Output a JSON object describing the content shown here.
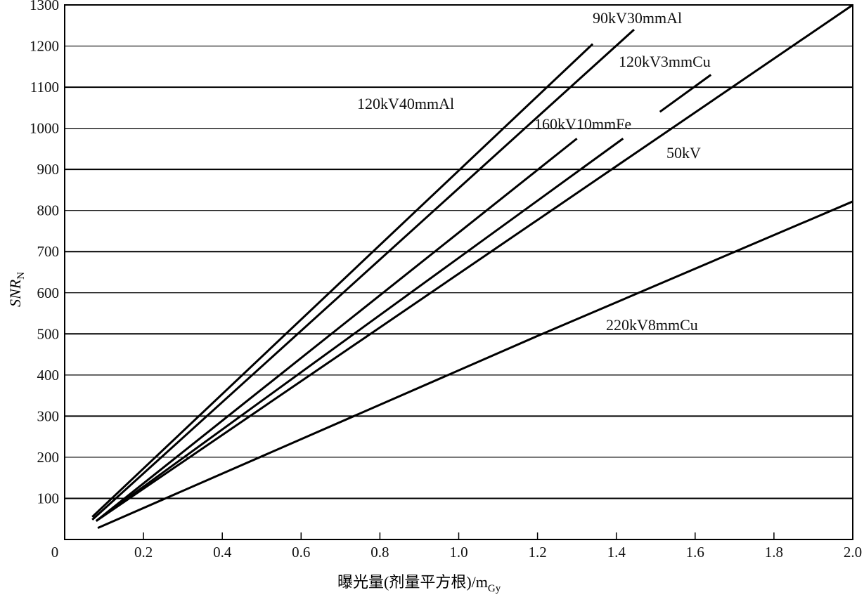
{
  "chart_data": {
    "type": "line",
    "title": "",
    "xlabel": "曝光量(剂量平方根)/m",
    "xlabel_sub": "Gy",
    "ylabel": "SNR",
    "ylabel_sub": "N",
    "xlim": [
      0,
      2.0
    ],
    "ylim": [
      0,
      1300
    ],
    "xticks": [
      "0",
      "0.2",
      "0.4",
      "0.6",
      "0.8",
      "1.0",
      "1.2",
      "1.4",
      "1.6",
      "1.8",
      "2.0"
    ],
    "yticks": [
      "100",
      "200",
      "300",
      "400",
      "500",
      "600",
      "700",
      "800",
      "900",
      "1000",
      "1100",
      "1200",
      "1300"
    ],
    "grid": "horizontal",
    "series": [
      {
        "name": "120kV40mmAl",
        "points": [
          [
            0.07,
            55
          ],
          [
            1.34,
            1205
          ]
        ]
      },
      {
        "name": "90kV30mmAl",
        "points": [
          [
            0.07,
            48
          ],
          [
            1.445,
            1240
          ]
        ]
      },
      {
        "name": "160kV10mmFe",
        "points": [
          [
            0.08,
            45
          ],
          [
            1.3,
            975
          ]
        ]
      },
      {
        "name": "120kV3mmCu",
        "points": [
          [
            0.08,
            45
          ],
          [
            1.64,
            1130
          ]
        ]
      },
      {
        "name": "50kV",
        "points": [
          [
            0.08,
            45
          ],
          [
            2.0,
            1300
          ]
        ]
      },
      {
        "name": "220kV8mmCu",
        "points": [
          [
            0.084,
            28
          ],
          [
            1.2,
            495
          ],
          [
            2.0,
            822
          ]
        ]
      }
    ]
  }
}
